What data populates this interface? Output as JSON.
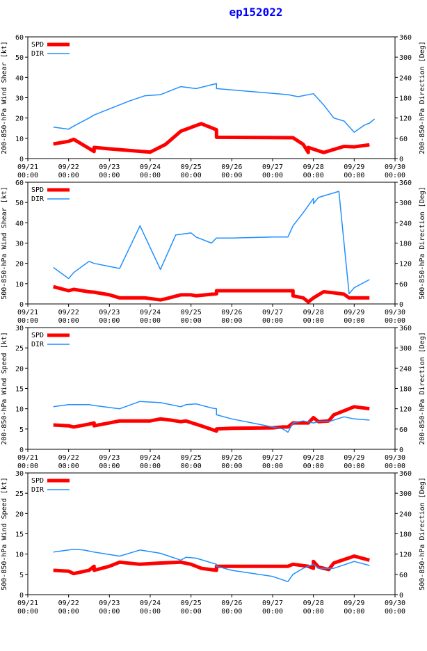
{
  "title": "ep152022",
  "colors": {
    "spd": "#ff0000",
    "dir": "#1f8fff",
    "axis": "#000000",
    "title": "#0000ff"
  },
  "chart_data": [
    {
      "type": "line",
      "ylabel_left": "200-850-hPa Wind Shear [kt]",
      "ylabel_right": "200-850-hPa Direction [Deg]",
      "ylim_left": [
        0,
        60
      ],
      "ylim_right": [
        0,
        360
      ],
      "yticks_left": [
        "0",
        "10",
        "20",
        "30",
        "40",
        "50",
        "60"
      ],
      "yticks_right": [
        "0",
        "60",
        "120",
        "180",
        "240",
        "300",
        "360"
      ],
      "x_ticks": [
        "09/21\n00:00",
        "09/22\n00:00",
        "09/23\n00:00",
        "09/24\n00:00",
        "09/25\n00:00",
        "09/26\n00:00",
        "09/27\n00:00",
        "09/28\n00:00",
        "09/29\n00:00",
        "09/30\n00:00"
      ],
      "legend": [
        "SPD",
        "DIR"
      ],
      "series": [
        {
          "name": "SPD",
          "axis": "left",
          "points": [
            [
              0.625,
              7.2
            ],
            [
              1.0,
              8.5
            ],
            [
              1.125,
              9.5
            ],
            [
              1.5,
              5.0
            ],
            [
              1.625,
              3.5
            ],
            [
              1.625,
              5.5
            ],
            [
              2.0,
              4.8
            ],
            [
              3.0,
              3.2
            ],
            [
              3.375,
              7.0
            ],
            [
              3.75,
              13.5
            ],
            [
              4.25,
              17.2
            ],
            [
              4.625,
              14.2
            ],
            [
              4.625,
              10.5
            ],
            [
              6.5,
              10.3
            ],
            [
              6.75,
              7.0
            ],
            [
              6.875,
              3.0
            ],
            [
              6.875,
              5.5
            ],
            [
              7.25,
              3.0
            ],
            [
              7.75,
              6.0
            ],
            [
              8.0,
              5.8
            ],
            [
              8.375,
              6.8
            ]
          ]
        },
        {
          "name": "DIR",
          "axis": "left",
          "points": [
            [
              0.625,
              15.5
            ],
            [
              1.0,
              14.5
            ],
            [
              1.125,
              16.0
            ],
            [
              1.5,
              20.0
            ],
            [
              1.625,
              21.5
            ],
            [
              2.5,
              28.5
            ],
            [
              2.875,
              31.0
            ],
            [
              3.25,
              31.5
            ],
            [
              3.75,
              35.5
            ],
            [
              4.125,
              34.5
            ],
            [
              4.625,
              37.0
            ],
            [
              4.625,
              34.5
            ],
            [
              6.375,
              31.5
            ],
            [
              6.625,
              30.5
            ],
            [
              7.0,
              32.0
            ],
            [
              7.25,
              26.5
            ],
            [
              7.5,
              20.0
            ],
            [
              7.75,
              18.5
            ],
            [
              8.0,
              13.0
            ],
            [
              8.25,
              16.5
            ],
            [
              8.375,
              17.5
            ],
            [
              8.5,
              19.5
            ]
          ]
        }
      ]
    },
    {
      "type": "line",
      "ylabel_left": "500-850-hPa Wind Shear [kt]",
      "ylabel_right": "500-850-hPa Direction [Deg]",
      "ylim_left": [
        0,
        60
      ],
      "ylim_right": [
        0,
        360
      ],
      "yticks_left": [
        "0",
        "10",
        "20",
        "30",
        "40",
        "50",
        "60"
      ],
      "yticks_right": [
        "0",
        "60",
        "120",
        "180",
        "240",
        "300",
        "360"
      ],
      "x_ticks": [
        "09/21\n00:00",
        "09/22\n00:00",
        "09/23\n00:00",
        "09/24\n00:00",
        "09/25\n00:00",
        "09/26\n00:00",
        "09/27\n00:00",
        "09/28\n00:00",
        "09/29\n00:00",
        "09/30\n00:00"
      ],
      "legend": [
        "SPD",
        "DIR"
      ],
      "series": [
        {
          "name": "SPD",
          "axis": "left",
          "points": [
            [
              0.625,
              8.5
            ],
            [
              1.0,
              6.5
            ],
            [
              1.125,
              7.2
            ],
            [
              1.5,
              6.0
            ],
            [
              1.625,
              5.8
            ],
            [
              2.0,
              4.5
            ],
            [
              2.25,
              3.0
            ],
            [
              2.875,
              3.0
            ],
            [
              3.25,
              2.0
            ],
            [
              3.375,
              2.5
            ],
            [
              3.75,
              4.5
            ],
            [
              4.0,
              4.5
            ],
            [
              4.125,
              4.0
            ],
            [
              4.625,
              5.0
            ],
            [
              4.625,
              6.5
            ],
            [
              6.0,
              6.5
            ],
            [
              6.25,
              6.5
            ],
            [
              6.5,
              6.5
            ],
            [
              6.5,
              4.0
            ],
            [
              6.75,
              3.0
            ],
            [
              6.875,
              1.0
            ],
            [
              7.0,
              3.0
            ],
            [
              7.25,
              6.0
            ],
            [
              7.5,
              5.5
            ],
            [
              7.75,
              4.8
            ],
            [
              7.875,
              3.0
            ],
            [
              8.375,
              3.0
            ]
          ]
        },
        {
          "name": "DIR",
          "axis": "left",
          "points": [
            [
              0.625,
              18.0
            ],
            [
              1.0,
              12.5
            ],
            [
              1.125,
              15.5
            ],
            [
              1.5,
              21.0
            ],
            [
              1.625,
              20.0
            ],
            [
              2.25,
              17.5
            ],
            [
              2.75,
              38.5
            ],
            [
              3.25,
              17.0
            ],
            [
              3.625,
              34.0
            ],
            [
              4.0,
              35.0
            ],
            [
              4.125,
              33.0
            ],
            [
              4.5,
              30.0
            ],
            [
              4.625,
              32.5
            ],
            [
              5.0,
              32.5
            ],
            [
              6.0,
              33.0
            ],
            [
              6.375,
              33.0
            ],
            [
              6.5,
              38.5
            ],
            [
              6.75,
              45.0
            ],
            [
              7.0,
              52.0
            ],
            [
              7.0,
              49.5
            ],
            [
              7.125,
              52.5
            ],
            [
              7.625,
              55.5
            ],
            [
              7.875,
              5.0
            ],
            [
              8.0,
              8.0
            ],
            [
              8.375,
              12.0
            ]
          ]
        }
      ]
    },
    {
      "type": "line",
      "ylabel_left": "200-850-hPa Wind Speed [kt]",
      "ylabel_right": "200-850-hPa Direction [Deg]",
      "ylim_left": [
        0,
        30
      ],
      "ylim_right": [
        0,
        360
      ],
      "yticks_left": [
        "0",
        "5",
        "10",
        "15",
        "20",
        "25",
        "30"
      ],
      "yticks_right": [
        "0",
        "60",
        "120",
        "180",
        "240",
        "300",
        "360"
      ],
      "x_ticks": [
        "09/21\n00:00",
        "09/22\n00:00",
        "09/23\n00:00",
        "09/24\n00:00",
        "09/25\n00:00",
        "09/26\n00:00",
        "09/27\n00:00",
        "09/28\n00:00",
        "09/29\n00:00",
        "09/30\n00:00"
      ],
      "legend": [
        "SPD",
        "DIR"
      ],
      "series": [
        {
          "name": "SPD",
          "axis": "left",
          "points": [
            [
              0.625,
              6.0
            ],
            [
              1.0,
              5.8
            ],
            [
              1.125,
              5.5
            ],
            [
              1.5,
              6.2
            ],
            [
              1.625,
              6.5
            ],
            [
              1.625,
              5.8
            ],
            [
              2.0,
              6.5
            ],
            [
              2.25,
              7.0
            ],
            [
              3.0,
              7.0
            ],
            [
              3.25,
              7.5
            ],
            [
              3.5,
              7.2
            ],
            [
              3.75,
              6.8
            ],
            [
              3.875,
              7.0
            ],
            [
              4.25,
              5.8
            ],
            [
              4.625,
              4.5
            ],
            [
              4.625,
              5.0
            ],
            [
              5.0,
              5.2
            ],
            [
              6.0,
              5.3
            ],
            [
              6.25,
              5.5
            ],
            [
              6.375,
              5.5
            ],
            [
              6.5,
              6.5
            ],
            [
              6.875,
              6.5
            ],
            [
              7.0,
              7.8
            ],
            [
              7.125,
              6.8
            ],
            [
              7.375,
              7.0
            ],
            [
              7.5,
              8.5
            ],
            [
              8.0,
              10.5
            ],
            [
              8.375,
              10.0
            ]
          ]
        },
        {
          "name": "DIR",
          "axis": "left",
          "points": [
            [
              0.625,
              10.5
            ],
            [
              1.0,
              11.0
            ],
            [
              1.375,
              11.0
            ],
            [
              1.5,
              11.0
            ],
            [
              1.625,
              10.8
            ],
            [
              2.25,
              10.0
            ],
            [
              2.75,
              11.8
            ],
            [
              3.25,
              11.5
            ],
            [
              3.75,
              10.5
            ],
            [
              3.875,
              11.0
            ],
            [
              4.125,
              11.2
            ],
            [
              4.5,
              10.2
            ],
            [
              4.625,
              10.0
            ],
            [
              4.625,
              8.5
            ],
            [
              5.0,
              7.5
            ],
            [
              6.0,
              5.5
            ],
            [
              6.25,
              5.0
            ],
            [
              6.375,
              4.2
            ],
            [
              6.5,
              6.5
            ],
            [
              6.75,
              7.0
            ],
            [
              7.0,
              6.5
            ],
            [
              7.125,
              6.8
            ],
            [
              7.375,
              6.8
            ],
            [
              7.75,
              8.0
            ],
            [
              8.0,
              7.5
            ],
            [
              8.375,
              7.2
            ]
          ]
        }
      ]
    },
    {
      "type": "line",
      "ylabel_left": "500-850-hPa Wind Speed [kt]",
      "ylabel_right": "500-850-hPa Direction [Deg]",
      "ylim_left": [
        0,
        30
      ],
      "ylim_right": [
        0,
        360
      ],
      "yticks_left": [
        "0",
        "5",
        "10",
        "15",
        "20",
        "25",
        "30"
      ],
      "yticks_right": [
        "0",
        "60",
        "120",
        "180",
        "240",
        "300",
        "360"
      ],
      "x_ticks": [
        "09/21\n00:00",
        "09/22\n00:00",
        "09/23\n00:00",
        "09/24\n00:00",
        "09/25\n00:00",
        "09/26\n00:00",
        "09/27\n00:00",
        "09/28\n00:00",
        "09/29\n00:00",
        "09/30\n00:00"
      ],
      "legend": [
        "SPD",
        "DIR"
      ],
      "series": [
        {
          "name": "SPD",
          "axis": "left",
          "points": [
            [
              0.625,
              6.0
            ],
            [
              1.0,
              5.8
            ],
            [
              1.125,
              5.2
            ],
            [
              1.5,
              6.0
            ],
            [
              1.625,
              7.0
            ],
            [
              1.625,
              6.0
            ],
            [
              2.0,
              7.0
            ],
            [
              2.25,
              8.0
            ],
            [
              2.75,
              7.5
            ],
            [
              3.25,
              7.8
            ],
            [
              3.75,
              8.0
            ],
            [
              4.0,
              7.5
            ],
            [
              4.25,
              6.5
            ],
            [
              4.625,
              6.0
            ],
            [
              4.625,
              7.0
            ],
            [
              6.0,
              7.0
            ],
            [
              6.375,
              7.0
            ],
            [
              6.5,
              7.5
            ],
            [
              6.875,
              7.0
            ],
            [
              7.0,
              6.5
            ],
            [
              7.0,
              8.2
            ],
            [
              7.125,
              6.8
            ],
            [
              7.375,
              6.2
            ],
            [
              7.5,
              7.8
            ],
            [
              8.0,
              9.5
            ],
            [
              8.375,
              8.5
            ]
          ]
        },
        {
          "name": "DIR",
          "axis": "left",
          "points": [
            [
              0.625,
              10.5
            ],
            [
              1.125,
              11.2
            ],
            [
              1.375,
              11.0
            ],
            [
              1.625,
              10.5
            ],
            [
              2.25,
              9.5
            ],
            [
              2.75,
              11.0
            ],
            [
              3.25,
              10.2
            ],
            [
              3.75,
              8.5
            ],
            [
              3.875,
              9.2
            ],
            [
              4.125,
              9.0
            ],
            [
              4.625,
              7.5
            ],
            [
              4.625,
              7.0
            ],
            [
              5.0,
              6.0
            ],
            [
              6.0,
              4.5
            ],
            [
              6.375,
              3.2
            ],
            [
              6.5,
              5.0
            ],
            [
              6.75,
              6.5
            ],
            [
              7.0,
              7.5
            ],
            [
              7.125,
              6.5
            ],
            [
              7.5,
              6.5
            ],
            [
              8.0,
              8.2
            ],
            [
              8.375,
              7.2
            ]
          ]
        }
      ]
    }
  ]
}
